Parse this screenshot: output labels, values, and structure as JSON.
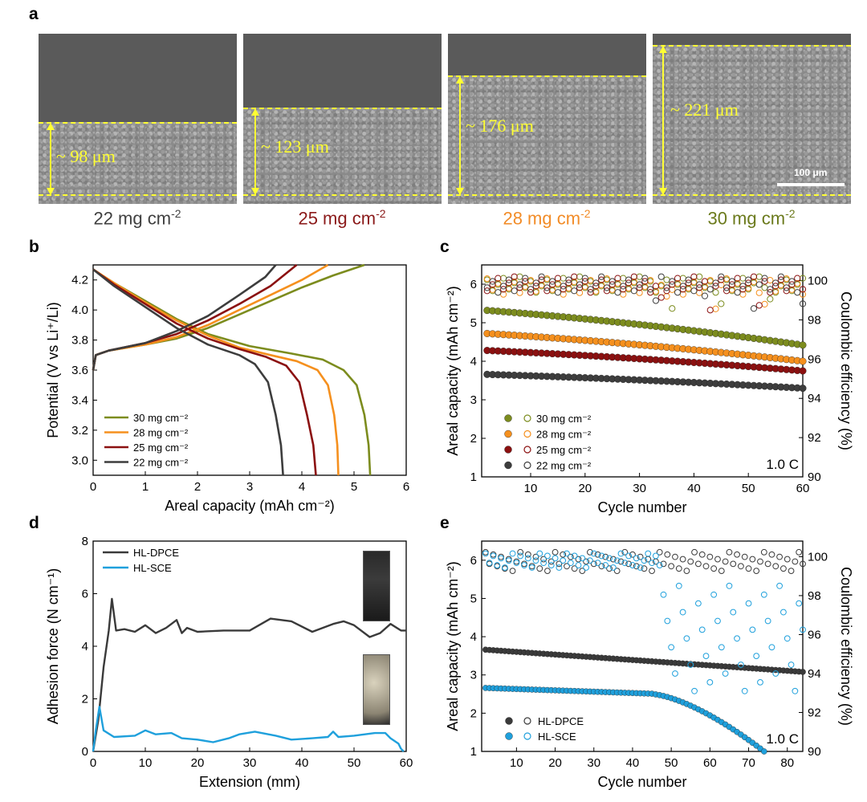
{
  "panel_labels": {
    "a": "a",
    "b": "b",
    "c": "c",
    "d": "d",
    "e": "e"
  },
  "panel_a": {
    "images": [
      {
        "thickness": "~ 98 μm",
        "loading": "22 mg cm",
        "sup": "-2",
        "color": "#404040"
      },
      {
        "thickness": "~ 123 μm",
        "loading": "25 mg cm",
        "sup": "-2",
        "color": "#8b1a1a"
      },
      {
        "thickness": "~ 176 μm",
        "loading": "28 mg cm",
        "sup": "-2",
        "color": "#f28c28"
      },
      {
        "thickness": "~ 221 μm",
        "loading": "30 mg cm",
        "sup": "-2",
        "color": "#6b7a1c"
      }
    ],
    "scale_bar": "100 μm"
  },
  "colors": {
    "c22": "#3d3d3d",
    "c25": "#8b1010",
    "c28": "#f5901e",
    "c30": "#7c8c1e",
    "dpce": "#3a3a3a",
    "sce": "#1fa0dc"
  },
  "chart_data": [
    {
      "id": "b",
      "type": "line",
      "xlabel": "Areal capacity (mAh cm⁻²)",
      "ylabel": "Potential (V vs Li⁺/Li)",
      "xlim": [
        0,
        6
      ],
      "ylim": [
        2.9,
        4.3
      ],
      "xticks": [
        0,
        1,
        2,
        3,
        4,
        5,
        6
      ],
      "yticks": [
        3.0,
        3.2,
        3.4,
        3.6,
        3.8,
        4.0,
        4.2
      ],
      "legend": [
        "30 mg cm⁻²",
        "28 mg cm⁻²",
        "25 mg cm⁻²",
        "22 mg cm⁻²"
      ],
      "series": [
        {
          "name": "30 mg cm⁻²",
          "color": "#7c8c1e",
          "charge": [
            [
              0,
              3.6
            ],
            [
              0.05,
              3.7
            ],
            [
              0.3,
              3.73
            ],
            [
              1,
              3.77
            ],
            [
              1.6,
              3.81
            ],
            [
              2.2,
              3.88
            ],
            [
              2.8,
              3.97
            ],
            [
              3.4,
              4.06
            ],
            [
              4,
              4.15
            ],
            [
              4.6,
              4.23
            ],
            [
              5.2,
              4.3
            ]
          ],
          "discharge": [
            [
              0,
              4.27
            ],
            [
              0.4,
              4.18
            ],
            [
              1,
              4.06
            ],
            [
              1.6,
              3.94
            ],
            [
              2.2,
              3.84
            ],
            [
              3,
              3.76
            ],
            [
              3.8,
              3.71
            ],
            [
              4.4,
              3.67
            ],
            [
              4.8,
              3.6
            ],
            [
              5.05,
              3.5
            ],
            [
              5.2,
              3.3
            ],
            [
              5.28,
              3.1
            ],
            [
              5.31,
              2.9
            ]
          ]
        },
        {
          "name": "28 mg cm⁻²",
          "color": "#f5901e",
          "charge": [
            [
              0,
              3.6
            ],
            [
              0.05,
              3.7
            ],
            [
              0.3,
              3.73
            ],
            [
              1,
              3.77
            ],
            [
              1.6,
              3.82
            ],
            [
              2.2,
              3.9
            ],
            [
              2.8,
              4.0
            ],
            [
              3.4,
              4.1
            ],
            [
              4,
              4.2
            ],
            [
              4.5,
              4.3
            ]
          ],
          "discharge": [
            [
              0,
              4.27
            ],
            [
              0.4,
              4.18
            ],
            [
              1,
              4.05
            ],
            [
              1.6,
              3.93
            ],
            [
              2.2,
              3.83
            ],
            [
              2.8,
              3.75
            ],
            [
              3.4,
              3.7
            ],
            [
              3.9,
              3.66
            ],
            [
              4.3,
              3.6
            ],
            [
              4.5,
              3.5
            ],
            [
              4.62,
              3.3
            ],
            [
              4.68,
              3.1
            ],
            [
              4.7,
              2.9
            ]
          ]
        },
        {
          "name": "25 mg cm⁻²",
          "color": "#8b1010",
          "charge": [
            [
              0,
              3.6
            ],
            [
              0.05,
              3.7
            ],
            [
              0.3,
              3.73
            ],
            [
              1,
              3.78
            ],
            [
              1.6,
              3.84
            ],
            [
              2.2,
              3.93
            ],
            [
              2.8,
              4.04
            ],
            [
              3.4,
              4.16
            ],
            [
              3.9,
              4.3
            ]
          ],
          "discharge": [
            [
              0,
              4.27
            ],
            [
              0.4,
              4.17
            ],
            [
              1,
              4.04
            ],
            [
              1.6,
              3.91
            ],
            [
              2.2,
              3.81
            ],
            [
              2.8,
              3.74
            ],
            [
              3.3,
              3.69
            ],
            [
              3.7,
              3.63
            ],
            [
              3.95,
              3.52
            ],
            [
              4.1,
              3.3
            ],
            [
              4.22,
              3.1
            ],
            [
              4.27,
              2.9
            ]
          ]
        },
        {
          "name": "22 mg cm⁻²",
          "color": "#3d3d3d",
          "charge": [
            [
              0,
              3.6
            ],
            [
              0.05,
              3.7
            ],
            [
              0.3,
              3.73
            ],
            [
              1,
              3.78
            ],
            [
              1.6,
              3.86
            ],
            [
              2.2,
              3.96
            ],
            [
              2.8,
              4.1
            ],
            [
              3.3,
              4.22
            ],
            [
              3.5,
              4.3
            ]
          ],
          "discharge": [
            [
              0,
              4.27
            ],
            [
              0.4,
              4.16
            ],
            [
              1,
              4.02
            ],
            [
              1.6,
              3.88
            ],
            [
              2.2,
              3.77
            ],
            [
              2.8,
              3.7
            ],
            [
              3.1,
              3.64
            ],
            [
              3.35,
              3.52
            ],
            [
              3.5,
              3.3
            ],
            [
              3.6,
              3.1
            ],
            [
              3.64,
              2.9
            ]
          ]
        }
      ]
    },
    {
      "id": "c",
      "type": "scatter",
      "xlabel": "Cycle number",
      "ylabel": "Areal capacity (mAh cm⁻²)",
      "y2label": "Coulombic efficiency (%)",
      "xlim": [
        1,
        60
      ],
      "ylim": [
        1,
        6.5
      ],
      "y2lim": [
        90,
        100.8
      ],
      "xticks": [
        10,
        20,
        30,
        40,
        50,
        60
      ],
      "yticks": [
        1,
        2,
        3,
        4,
        5,
        6
      ],
      "y2ticks": [
        90,
        92,
        94,
        96,
        98,
        100
      ],
      "annotation": "1.0 C",
      "legend": [
        "30 mg cm⁻²",
        "28 mg cm⁻²",
        "25 mg cm⁻²",
        "22 mg cm⁻²"
      ],
      "series": [
        {
          "name": "30 mg cm⁻²",
          "color": "#7c8c1e",
          "cap_start": 5.32,
          "cap_end": 4.42,
          "ce": 99.8
        },
        {
          "name": "28 mg cm⁻²",
          "color": "#f5901e",
          "cap_start": 4.72,
          "cap_end": 4.0,
          "ce": 99.7
        },
        {
          "name": "25 mg cm⁻²",
          "color": "#8b1010",
          "cap_start": 4.28,
          "cap_end": 3.75,
          "ce": 99.8
        },
        {
          "name": "22 mg cm⁻²",
          "color": "#3d3d3d",
          "cap_start": 3.66,
          "cap_end": 3.3,
          "ce": 99.8
        }
      ]
    },
    {
      "id": "d",
      "type": "line",
      "xlabel": "Extension (mm)",
      "ylabel": "Adhesion force (N cm⁻¹)",
      "xlim": [
        0,
        60
      ],
      "ylim": [
        0,
        8
      ],
      "xticks": [
        0,
        10,
        20,
        30,
        40,
        50,
        60
      ],
      "yticks": [
        0,
        2,
        4,
        6,
        8
      ],
      "legend": [
        "HL-DPCE",
        "HL-SCE"
      ],
      "series": [
        {
          "name": "HL-DPCE",
          "color": "#3a3a3a",
          "points": [
            [
              0,
              0
            ],
            [
              1,
              1.2
            ],
            [
              2,
              3.2
            ],
            [
              3,
              4.6
            ],
            [
              3.6,
              5.8
            ],
            [
              4.4,
              4.6
            ],
            [
              6,
              4.65
            ],
            [
              8,
              4.55
            ],
            [
              10,
              4.8
            ],
            [
              12,
              4.5
            ],
            [
              14,
              4.7
            ],
            [
              16,
              5.0
            ],
            [
              17,
              4.5
            ],
            [
              18,
              4.7
            ],
            [
              20,
              4.55
            ],
            [
              25,
              4.6
            ],
            [
              30,
              4.6
            ],
            [
              34,
              5.05
            ],
            [
              38,
              4.95
            ],
            [
              42,
              4.55
            ],
            [
              46,
              4.85
            ],
            [
              48,
              4.95
            ],
            [
              50,
              4.8
            ],
            [
              53,
              4.35
            ],
            [
              55,
              4.5
            ],
            [
              57,
              4.85
            ],
            [
              59,
              4.6
            ],
            [
              60,
              4.6
            ]
          ]
        },
        {
          "name": "HL-SCE",
          "color": "#1fa0dc",
          "points": [
            [
              0,
              0
            ],
            [
              0.5,
              0.8
            ],
            [
              1.2,
              1.7
            ],
            [
              2,
              0.8
            ],
            [
              4,
              0.55
            ],
            [
              8,
              0.6
            ],
            [
              10,
              0.8
            ],
            [
              12,
              0.65
            ],
            [
              15,
              0.7
            ],
            [
              17,
              0.5
            ],
            [
              20,
              0.45
            ],
            [
              23,
              0.35
            ],
            [
              26,
              0.5
            ],
            [
              28,
              0.65
            ],
            [
              31,
              0.75
            ],
            [
              35,
              0.6
            ],
            [
              38,
              0.45
            ],
            [
              42,
              0.5
            ],
            [
              45,
              0.55
            ],
            [
              46,
              0.75
            ],
            [
              47,
              0.55
            ],
            [
              50,
              0.6
            ],
            [
              54,
              0.7
            ],
            [
              56,
              0.7
            ],
            [
              57,
              0.5
            ],
            [
              58.5,
              0.3
            ],
            [
              59,
              0.1
            ],
            [
              59.5,
              0.0
            ]
          ]
        }
      ]
    },
    {
      "id": "e",
      "type": "scatter",
      "xlabel": "Cycle number",
      "ylabel": "Areal capacity (mAh cm⁻²)",
      "y2label": "Coulombic efficiency (%)",
      "xlim": [
        1,
        84
      ],
      "ylim": [
        1,
        6.5
      ],
      "y2lim": [
        90,
        100.8
      ],
      "xticks": [
        10,
        20,
        30,
        40,
        50,
        60,
        70,
        80
      ],
      "yticks": [
        1,
        2,
        3,
        4,
        5,
        6
      ],
      "y2ticks": [
        90,
        92,
        94,
        96,
        98,
        100
      ],
      "annotation": "1.0 C",
      "legend": [
        "HL-DPCE",
        "HL-SCE"
      ],
      "series": [
        {
          "name": "HL-DPCE",
          "color": "#3a3a3a",
          "cap_start": 3.66,
          "cap_end": 3.08
        },
        {
          "name": "HL-SCE",
          "color": "#1fa0dc",
          "cap_start": 2.66,
          "fade_start": 45,
          "cap_end": 1.0,
          "end_cycle": 74
        }
      ]
    }
  ]
}
